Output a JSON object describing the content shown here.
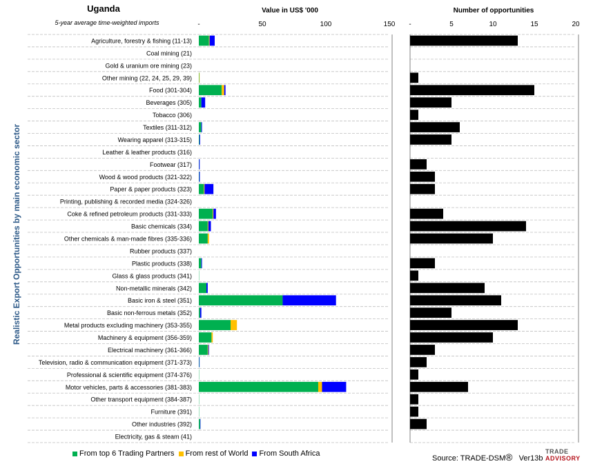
{
  "header": {
    "country": "Uganda",
    "subtitle": "5-year average time-weighted imports",
    "y_axis_title": "Realistic Export Opportunities by main economic sector"
  },
  "colors": {
    "top6": "#00b050",
    "row": "#ffc000",
    "sa": "#0000ff",
    "opps": "#000000",
    "grid": "#bfbfbf"
  },
  "legend": [
    {
      "label": "From top 6 Trading Partners",
      "color": "#00b050"
    },
    {
      "label": "From rest of World",
      "color": "#ffc000"
    },
    {
      "label": "From South Africa",
      "color": "#0000ff"
    }
  ],
  "footer": {
    "source": "Source: TRADE-DSM",
    "registered": "®",
    "version": "Ver13b",
    "logo_line1": "TRADE",
    "logo_line2": "ADVISORY"
  },
  "chart_data": [
    {
      "type": "bar",
      "orientation": "horizontal",
      "stacked": true,
      "title": "Value in US$ '000",
      "xlim": [
        0,
        150
      ],
      "ticks": [
        "-",
        "50",
        "100",
        "150"
      ],
      "categories": [
        "Agriculture, forestry & fishing (11-13)",
        "Coal mining (21)",
        "Gold & uranium ore mining (23)",
        "Other mining (22, 24, 25, 29, 39)",
        "Food (301-304)",
        "Beverages (305)",
        "Tobacco (306)",
        "Textiles (311-312)",
        "Wearing apparel (313-315)",
        "Leather & leather products (316)",
        "Footwear (317)",
        "Wood & wood products (321-322)",
        "Paper & paper products (323)",
        "Printing, publishing & recorded media (324-326)",
        "Coke & refined petroleum products (331-333)",
        "Basic chemicals (334)",
        "Other chemicals & man-made fibres (335-336)",
        "Rubber products (337)",
        "Plastic products (338)",
        "Glass & glass products (341)",
        "Non-metallic minerals (342)",
        "Basic iron & steel (351)",
        "Basic non-ferrous metals (352)",
        "Metal products excluding machinery (353-355)",
        "Machinery & equipment (356-359)",
        "Electrical machinery (361-366)",
        "Television, radio & communication equipment (371-373)",
        "Professional & scientific equipment (374-376)",
        "Motor vehicles, parts & accessories (381-383)",
        "Other transport equipment (384-387)",
        "Furniture (391)",
        "Other industries (392)",
        "Electricity, gas & steam (41)"
      ],
      "series": [
        {
          "name": "From top 6 Trading Partners",
          "color": "#00b050",
          "values": [
            8,
            0,
            0,
            0.3,
            18,
            2,
            0,
            2,
            0.5,
            0,
            0.2,
            0.3,
            4,
            0,
            11,
            7,
            7,
            0,
            2,
            0.2,
            6,
            66,
            1,
            25,
            10,
            7,
            0.3,
            0.2,
            94,
            0.2,
            0.2,
            1,
            0
          ]
        },
        {
          "name": "From rest of World",
          "color": "#ffc000",
          "values": [
            0.5,
            0,
            0,
            0.3,
            2,
            0,
            0,
            0,
            0,
            0,
            0,
            0,
            0.5,
            0,
            0.5,
            0.5,
            1,
            0,
            0,
            0,
            0,
            0,
            0,
            5,
            1,
            0.5,
            0,
            0,
            3,
            0,
            0,
            0,
            0
          ]
        },
        {
          "name": "From South Africa",
          "color": "#0000ff",
          "values": [
            4,
            0,
            0,
            0,
            1,
            3,
            0,
            0.5,
            0.5,
            0,
            0.5,
            0.5,
            7,
            0,
            2,
            2,
            0,
            0,
            0.5,
            0,
            1,
            42,
            1,
            0,
            0,
            0.5,
            0.3,
            0,
            19,
            0,
            0,
            0.3,
            0
          ]
        }
      ]
    },
    {
      "type": "bar",
      "orientation": "horizontal",
      "title": "Number of opportunities",
      "xlim": [
        0,
        20
      ],
      "ticks": [
        "-",
        "5",
        "10",
        "15",
        "20"
      ],
      "values": [
        13,
        0,
        0,
        1,
        15,
        5,
        1,
        6,
        5,
        0,
        2,
        3,
        3,
        0,
        4,
        14,
        10,
        0,
        3,
        1,
        9,
        11,
        5,
        13,
        10,
        3,
        2,
        1,
        7,
        1,
        1,
        2,
        0
      ]
    }
  ]
}
